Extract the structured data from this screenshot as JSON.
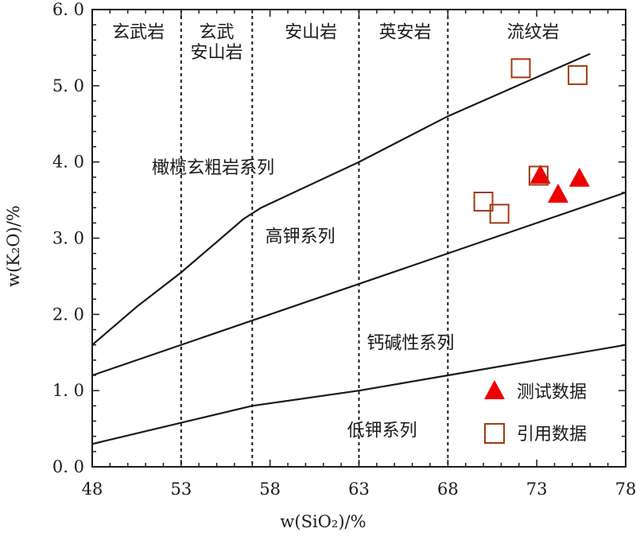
{
  "chart_data": {
    "type": "scatter",
    "xlabel": "w(SiO₂)/%",
    "ylabel": "w(K₂O)/%",
    "xlim": [
      48,
      78
    ],
    "ylim": [
      0,
      6
    ],
    "x_ticks": [
      "48",
      "53",
      "58",
      "63",
      "68",
      "73",
      "78"
    ],
    "y_ticks": [
      "0. 0",
      "1. 0",
      "2. 0",
      "3. 0",
      "4. 0",
      "5. 0",
      "6. 0"
    ],
    "grid": false,
    "dividers_x": [
      53,
      57,
      63,
      68
    ],
    "rock_labels": [
      "玄武岩",
      "玄武 安山岩",
      "安山岩",
      "英安岩",
      "流纹岩"
    ],
    "series_labels": [
      "橄榄玄粗岩系列",
      "高钾系列",
      "钙碱性系列",
      "低钾系列"
    ],
    "boundary_lines": [
      {
        "points": [
          [
            48,
            1.6
          ],
          [
            50.5,
            2.1
          ],
          [
            53,
            2.55
          ],
          [
            55,
            2.95
          ],
          [
            56.5,
            3.25
          ],
          [
            57.5,
            3.4
          ],
          [
            63,
            4.0
          ],
          [
            68,
            4.6
          ],
          [
            76,
            5.42
          ]
        ]
      },
      {
        "points": [
          [
            48,
            1.2
          ],
          [
            78,
            3.6
          ]
        ]
      },
      {
        "points": [
          [
            48,
            0.3
          ],
          [
            57,
            0.8
          ],
          [
            63,
            1.0
          ],
          [
            68,
            1.2
          ],
          [
            78,
            1.6
          ]
        ]
      }
    ],
    "series": [
      {
        "name": "测试数据",
        "marker": "triangle",
        "color": "#ee0000",
        "points": [
          [
            73.2,
            3.82
          ],
          [
            74.2,
            3.57
          ],
          [
            75.4,
            3.78
          ]
        ]
      },
      {
        "name": "引用数据",
        "marker": "square-open",
        "color": "#a23a10",
        "points": [
          [
            72.1,
            5.23
          ],
          [
            75.3,
            5.14
          ],
          [
            73.1,
            3.82
          ],
          [
            70.0,
            3.48
          ],
          [
            70.9,
            3.32
          ]
        ]
      }
    ],
    "legend_position": "bottom-right"
  }
}
